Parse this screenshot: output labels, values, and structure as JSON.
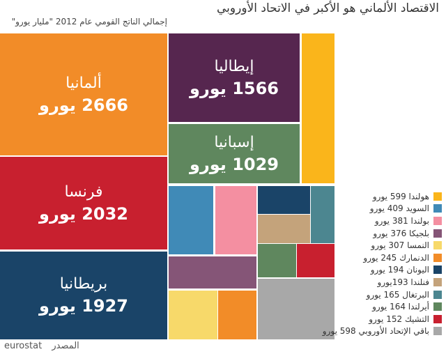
{
  "title": "الاقتصاد الألماني هو الأكبر في الاتحاد الأوروبي",
  "subtitle": "إجمالي الناتج القومي عام 2012 \"مليار يورو\"",
  "footer": {
    "source_label": "المصدر",
    "source": "eurostat"
  },
  "chart_data": {
    "type": "treemap",
    "unit": "مليار يورو",
    "items": [
      {
        "name": "ألمانيا",
        "value": 2666,
        "label": "2666 يورو",
        "color": "#f28c28"
      },
      {
        "name": "فرنسا",
        "value": 2032,
        "label": "2032 يورو",
        "color": "#c8202f"
      },
      {
        "name": "بريطانيا",
        "value": 1927,
        "label": "1927 يورو",
        "color": "#1a4468"
      },
      {
        "name": "إيطاليا",
        "value": 1566,
        "label": "1566 يورو",
        "color": "#56264f"
      },
      {
        "name": "إسبانيا",
        "value": 1029,
        "label": "1029 يورو",
        "color": "#5f875e"
      },
      {
        "name": "هولندا",
        "value": 599,
        "label": "هولندا 599 يورو",
        "color": "#fab51b"
      },
      {
        "name": "السويد",
        "value": 409,
        "label": "السويد 409 يورو",
        "color": "#408ab7"
      },
      {
        "name": "بولندا",
        "value": 381,
        "label": "بولندا 381 يورو",
        "color": "#f48fa1"
      },
      {
        "name": "بلجيكا",
        "value": 376,
        "label": "بلجيكا 376 يورو",
        "color": "#855577"
      },
      {
        "name": "النمسا",
        "value": 307,
        "label": "النمسا 307 يورو",
        "color": "#f7d96a"
      },
      {
        "name": "الدنمارك",
        "value": 245,
        "label": "الدنمارك 245 يورو",
        "color": "#f28c28"
      },
      {
        "name": "اليونان",
        "value": 194,
        "label": "اليونان 194 يورو",
        "color": "#1a4468"
      },
      {
        "name": "فنلندا",
        "value": 193,
        "label": "فنلندا 193يورو",
        "color": "#c4a37b"
      },
      {
        "name": "البرتغال",
        "value": 165,
        "label": "البرتغال 165 يورو",
        "color": "#4c8690"
      },
      {
        "name": "أيرلندا",
        "value": 164,
        "label": "أيرلندا 164 يورو",
        "color": "#5f875e"
      },
      {
        "name": "التشيك",
        "value": 152,
        "label": "التشيك 152 يورو",
        "color": "#c8202f"
      },
      {
        "name": "باقي الإتحاد الأوروبي",
        "value": 598,
        "label": "باقي الإتحاد الأوروبي 598 يورو",
        "color": "#a8a8a8"
      }
    ]
  }
}
